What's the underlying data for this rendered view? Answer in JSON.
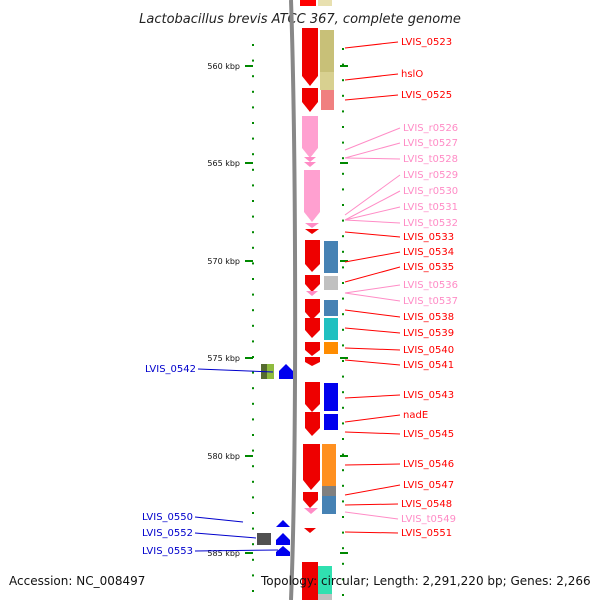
{
  "title": "Lactobacillus brevis ATCC 367, complete genome",
  "footer": {
    "accession": "Accession: NC_008497",
    "topology": "Topology: circular; Length: 2,291,220 bp; Genes: 2,266"
  },
  "colors": {
    "gene": "#ff0000",
    "rna": "#ff8cc6",
    "left_gene": "#0000ff",
    "left_label": "#0000cc",
    "tick": "#008800"
  },
  "ticks": [
    "560 kbp",
    "565 kbp",
    "570 kbp",
    "575 kbp",
    "580 kbp",
    "585 kbp"
  ],
  "right_labels": [
    {
      "text": "LVIS_0523",
      "kind": "gene"
    },
    {
      "text": "hslO",
      "kind": "gene"
    },
    {
      "text": "LVIS_0525",
      "kind": "gene"
    },
    {
      "text": "LVIS_r0526",
      "kind": "rna"
    },
    {
      "text": "LVIS_t0527",
      "kind": "rna"
    },
    {
      "text": "LVIS_t0528",
      "kind": "rna"
    },
    {
      "text": "LVIS_r0529",
      "kind": "rna"
    },
    {
      "text": "LVIS_r0530",
      "kind": "rna"
    },
    {
      "text": "LVIS_t0531",
      "kind": "rna"
    },
    {
      "text": "LVIS_t0532",
      "kind": "rna"
    },
    {
      "text": "LVIS_0533",
      "kind": "gene"
    },
    {
      "text": "LVIS_0534",
      "kind": "gene"
    },
    {
      "text": "LVIS_0535",
      "kind": "gene"
    },
    {
      "text": "LVIS_t0536",
      "kind": "rna"
    },
    {
      "text": "LVIS_t0537",
      "kind": "rna"
    },
    {
      "text": "LVIS_0538",
      "kind": "gene"
    },
    {
      "text": "LVIS_0539",
      "kind": "gene"
    },
    {
      "text": "LVIS_0540",
      "kind": "gene"
    },
    {
      "text": "LVIS_0541",
      "kind": "gene"
    },
    {
      "text": "LVIS_0543",
      "kind": "gene"
    },
    {
      "text": "nadE",
      "kind": "gene"
    },
    {
      "text": "LVIS_0545",
      "kind": "gene"
    },
    {
      "text": "LVIS_0546",
      "kind": "gene"
    },
    {
      "text": "LVIS_0547",
      "kind": "gene"
    },
    {
      "text": "LVIS_0548",
      "kind": "gene"
    },
    {
      "text": "LVIS_t0549",
      "kind": "rna"
    },
    {
      "text": "LVIS_0551",
      "kind": "gene"
    }
  ],
  "left_labels": [
    {
      "text": "LVIS_0542"
    },
    {
      "text": "LVIS_0550"
    },
    {
      "text": "LVIS_0552"
    },
    {
      "text": "LVIS_0553"
    }
  ]
}
